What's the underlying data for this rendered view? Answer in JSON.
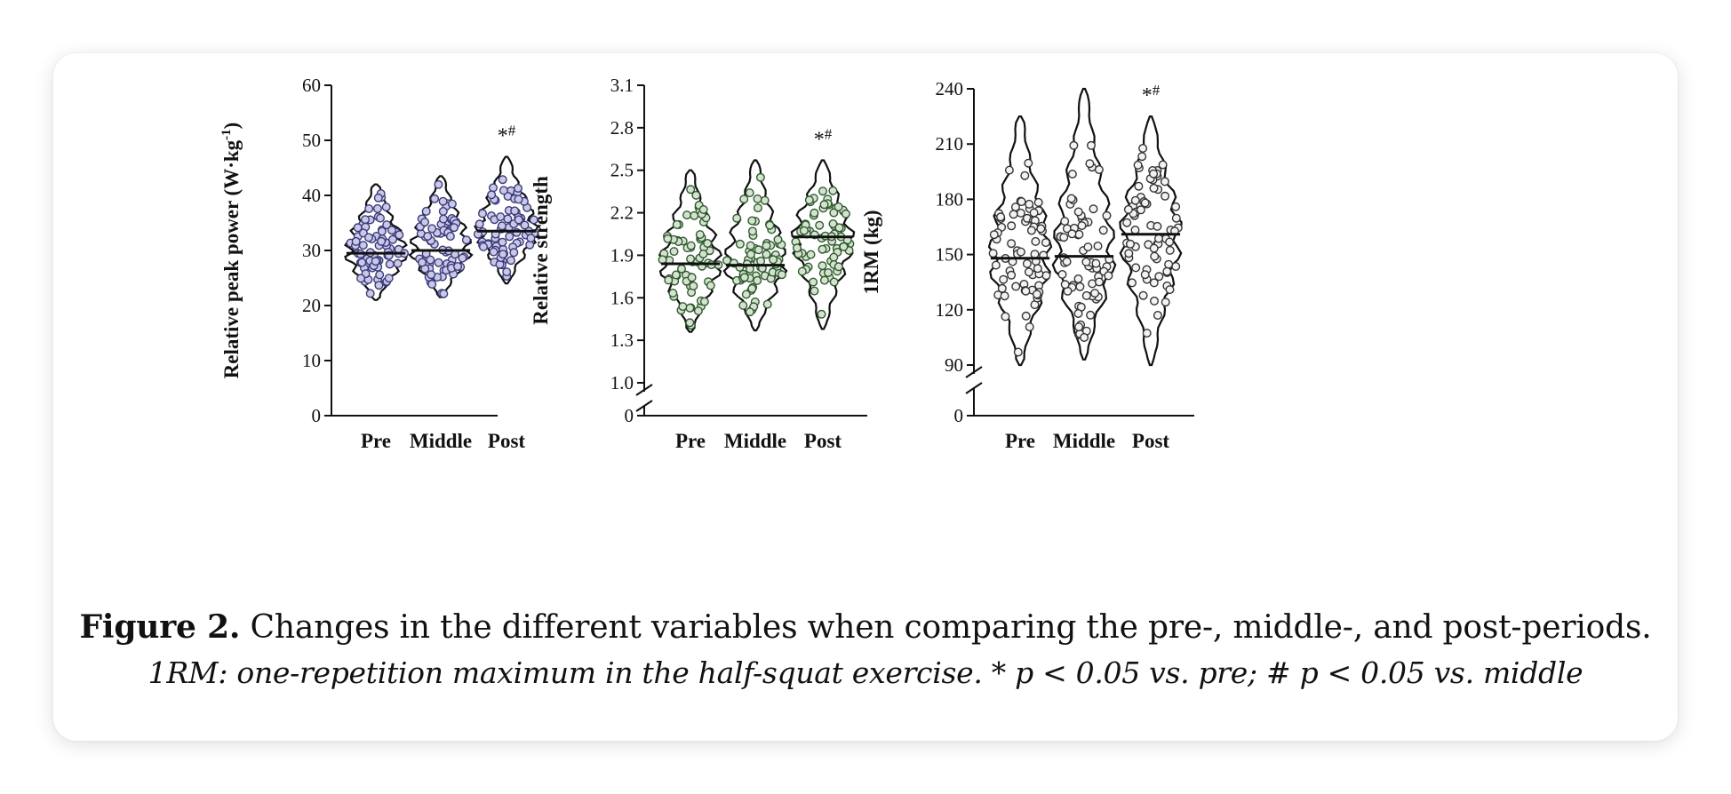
{
  "figure": {
    "label": "Figure 2.",
    "title": "Changes in the different variables when comparing the pre-, middle-, and post-periods.",
    "note": "1RM: one-repetition maximum in the half-squat exercise. * p < 0.05 vs. pre; # p < 0.05 vs. middle"
  },
  "chart_data": [
    {
      "type": "violin",
      "ylabel_main": "Relative peak power (W",
      "ylabel_dot": "·",
      "ylabel_kg": "kg",
      "ylabel_sup": "-1",
      "ylabel_close": ")",
      "categories": [
        "Pre",
        "Middle",
        "Post"
      ],
      "yticks": [
        "0",
        "10",
        "20",
        "30",
        "40",
        "50",
        "60"
      ],
      "ylim": [
        0,
        60
      ],
      "axis_break": false,
      "point_color": "#3a3a7a",
      "point_fill": "#c9c8e6",
      "medians": [
        29.5,
        30,
        33.5
      ],
      "ranges": [
        [
          21,
          42
        ],
        [
          21.5,
          43.5
        ],
        [
          24,
          47
        ]
      ],
      "significance": [
        {
          "category": "Post",
          "marks": "*",
          "sup": "#"
        }
      ]
    },
    {
      "type": "violin",
      "ylabel": "Relative strength",
      "categories": [
        "Pre",
        "Middle",
        "Post"
      ],
      "yticks": [
        "1.0",
        "1.3",
        "1.6",
        "1.9",
        "2.2",
        "2.5",
        "2.8",
        "3.1"
      ],
      "zero_label": "0",
      "ylim": [
        1.0,
        3.1
      ],
      "axis_break": true,
      "point_color": "#2e5a2e",
      "point_fill": "#d5e2cf",
      "medians": [
        1.84,
        1.83,
        2.03
      ],
      "ranges": [
        [
          1.36,
          2.5
        ],
        [
          1.37,
          2.57
        ],
        [
          1.38,
          2.57
        ]
      ],
      "significance": [
        {
          "category": "Post",
          "marks": "*",
          "sup": "#"
        }
      ]
    },
    {
      "type": "violin",
      "ylabel": "1RM (kg)",
      "categories": [
        "Pre",
        "Middle",
        "Post"
      ],
      "yticks": [
        "90",
        "120",
        "150",
        "180",
        "210",
        "240"
      ],
      "zero_label": "0",
      "ylim": [
        90,
        240
      ],
      "axis_break": true,
      "point_color": "#333333",
      "point_fill": "#f2f2f2",
      "medians": [
        148,
        149,
        161
      ],
      "ranges": [
        [
          90,
          225
        ],
        [
          93,
          240
        ],
        [
          90,
          225
        ]
      ],
      "significance": [
        {
          "category": "Post",
          "marks": "*",
          "sup": "#"
        }
      ]
    }
  ]
}
